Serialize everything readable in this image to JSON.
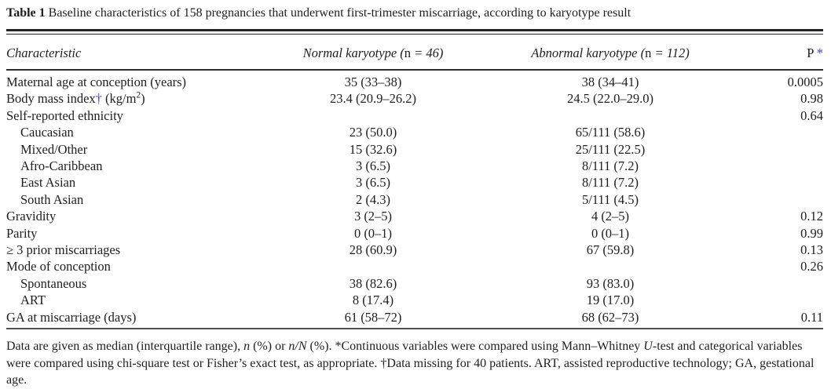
{
  "accent_color": "#3b3bd0",
  "title_segments": [
    {
      "t": "Table 1",
      "b": true
    },
    {
      "t": " Baseline characteristics of 158 pregnancies that underwent first-trimester miscarriage, according to karyotype result"
    }
  ],
  "header": {
    "characteristic": "Characteristic",
    "normal_karyotype": [
      {
        "t": "Normal karyotype (",
        "i": true
      },
      {
        "t": "n"
      },
      {
        "t": " = 46)",
        "i": true
      }
    ],
    "abnormal_karyotype": [
      {
        "t": "Abnormal karyotype (",
        "i": true
      },
      {
        "t": "n"
      },
      {
        "t": " = 112)",
        "i": true
      }
    ],
    "p": [
      {
        "t": "P"
      },
      {
        "t": " *",
        "c": "accent"
      }
    ]
  },
  "rows": [
    {
      "label": [
        {
          "t": "Maternal age at conception (years)"
        }
      ],
      "indent": false,
      "normal": "35 (33–38)",
      "abnormal": "38 (34–41)",
      "p": "0.0005"
    },
    {
      "label": [
        {
          "t": "Body mass index"
        },
        {
          "t": "†",
          "c": "accent"
        },
        {
          "t": " (kg/m"
        },
        {
          "t": "2",
          "sup": true
        },
        {
          "t": ")"
        }
      ],
      "indent": false,
      "normal": "23.4 (20.9–26.2)",
      "abnormal": "24.5 (22.0–29.0)",
      "p": "0.98"
    },
    {
      "label": [
        {
          "t": "Self-reported ethnicity"
        }
      ],
      "indent": false,
      "normal": "",
      "abnormal": "",
      "p": "0.64"
    },
    {
      "label": [
        {
          "t": "Caucasian"
        }
      ],
      "indent": true,
      "normal": "23 (50.0)",
      "abnormal": "65/111 (58.6)",
      "p": ""
    },
    {
      "label": [
        {
          "t": "Mixed/Other"
        }
      ],
      "indent": true,
      "normal": "15 (32.6)",
      "abnormal": "25/111 (22.5)",
      "p": ""
    },
    {
      "label": [
        {
          "t": "Afro-Caribbean"
        }
      ],
      "indent": true,
      "normal": "3 (6.5)",
      "abnormal": "8/111 (7.2)",
      "p": ""
    },
    {
      "label": [
        {
          "t": "East Asian"
        }
      ],
      "indent": true,
      "normal": "3 (6.5)",
      "abnormal": "8/111 (7.2)",
      "p": ""
    },
    {
      "label": [
        {
          "t": "South Asian"
        }
      ],
      "indent": true,
      "normal": "2 (4.3)",
      "abnormal": "5/111 (4.5)",
      "p": ""
    },
    {
      "label": [
        {
          "t": "Gravidity"
        }
      ],
      "indent": false,
      "normal": "3 (2–5)",
      "abnormal": "4 (2–5)",
      "p": "0.12"
    },
    {
      "label": [
        {
          "t": "Parity"
        }
      ],
      "indent": false,
      "normal": "0 (0–1)",
      "abnormal": "0 (0–1)",
      "p": "0.99"
    },
    {
      "label": [
        {
          "t": "≥ 3 prior miscarriages"
        }
      ],
      "indent": false,
      "normal": "28 (60.9)",
      "abnormal": "67 (59.8)",
      "p": "0.13"
    },
    {
      "label": [
        {
          "t": "Mode of conception"
        }
      ],
      "indent": false,
      "normal": "",
      "abnormal": "",
      "p": "0.26"
    },
    {
      "label": [
        {
          "t": "Spontaneous"
        }
      ],
      "indent": true,
      "normal": "38 (82.6)",
      "abnormal": "93 (83.0)",
      "p": ""
    },
    {
      "label": [
        {
          "t": "ART"
        }
      ],
      "indent": true,
      "normal": "8 (17.4)",
      "abnormal": "19 (17.0)",
      "p": ""
    },
    {
      "label": [
        {
          "t": "GA at miscarriage (days)"
        }
      ],
      "indent": false,
      "normal": "61 (58–72)",
      "abnormal": "68 (62–73)",
      "p": "0.11"
    }
  ],
  "footnote_segments": [
    {
      "t": "Data are given as median (interquartile range), "
    },
    {
      "t": "n",
      "i": true
    },
    {
      "t": " (%) or "
    },
    {
      "t": "n/N",
      "i": true
    },
    {
      "t": " (%). *Continuous variables were compared using Mann–Whitney "
    },
    {
      "t": "U",
      "i": true
    },
    {
      "t": "-test and categorical variables were compared using chi-square test or Fisher’s exact test, as appropriate. †Data missing for 40 patients. ART, assisted reproductive technology; GA, gestational age."
    }
  ]
}
